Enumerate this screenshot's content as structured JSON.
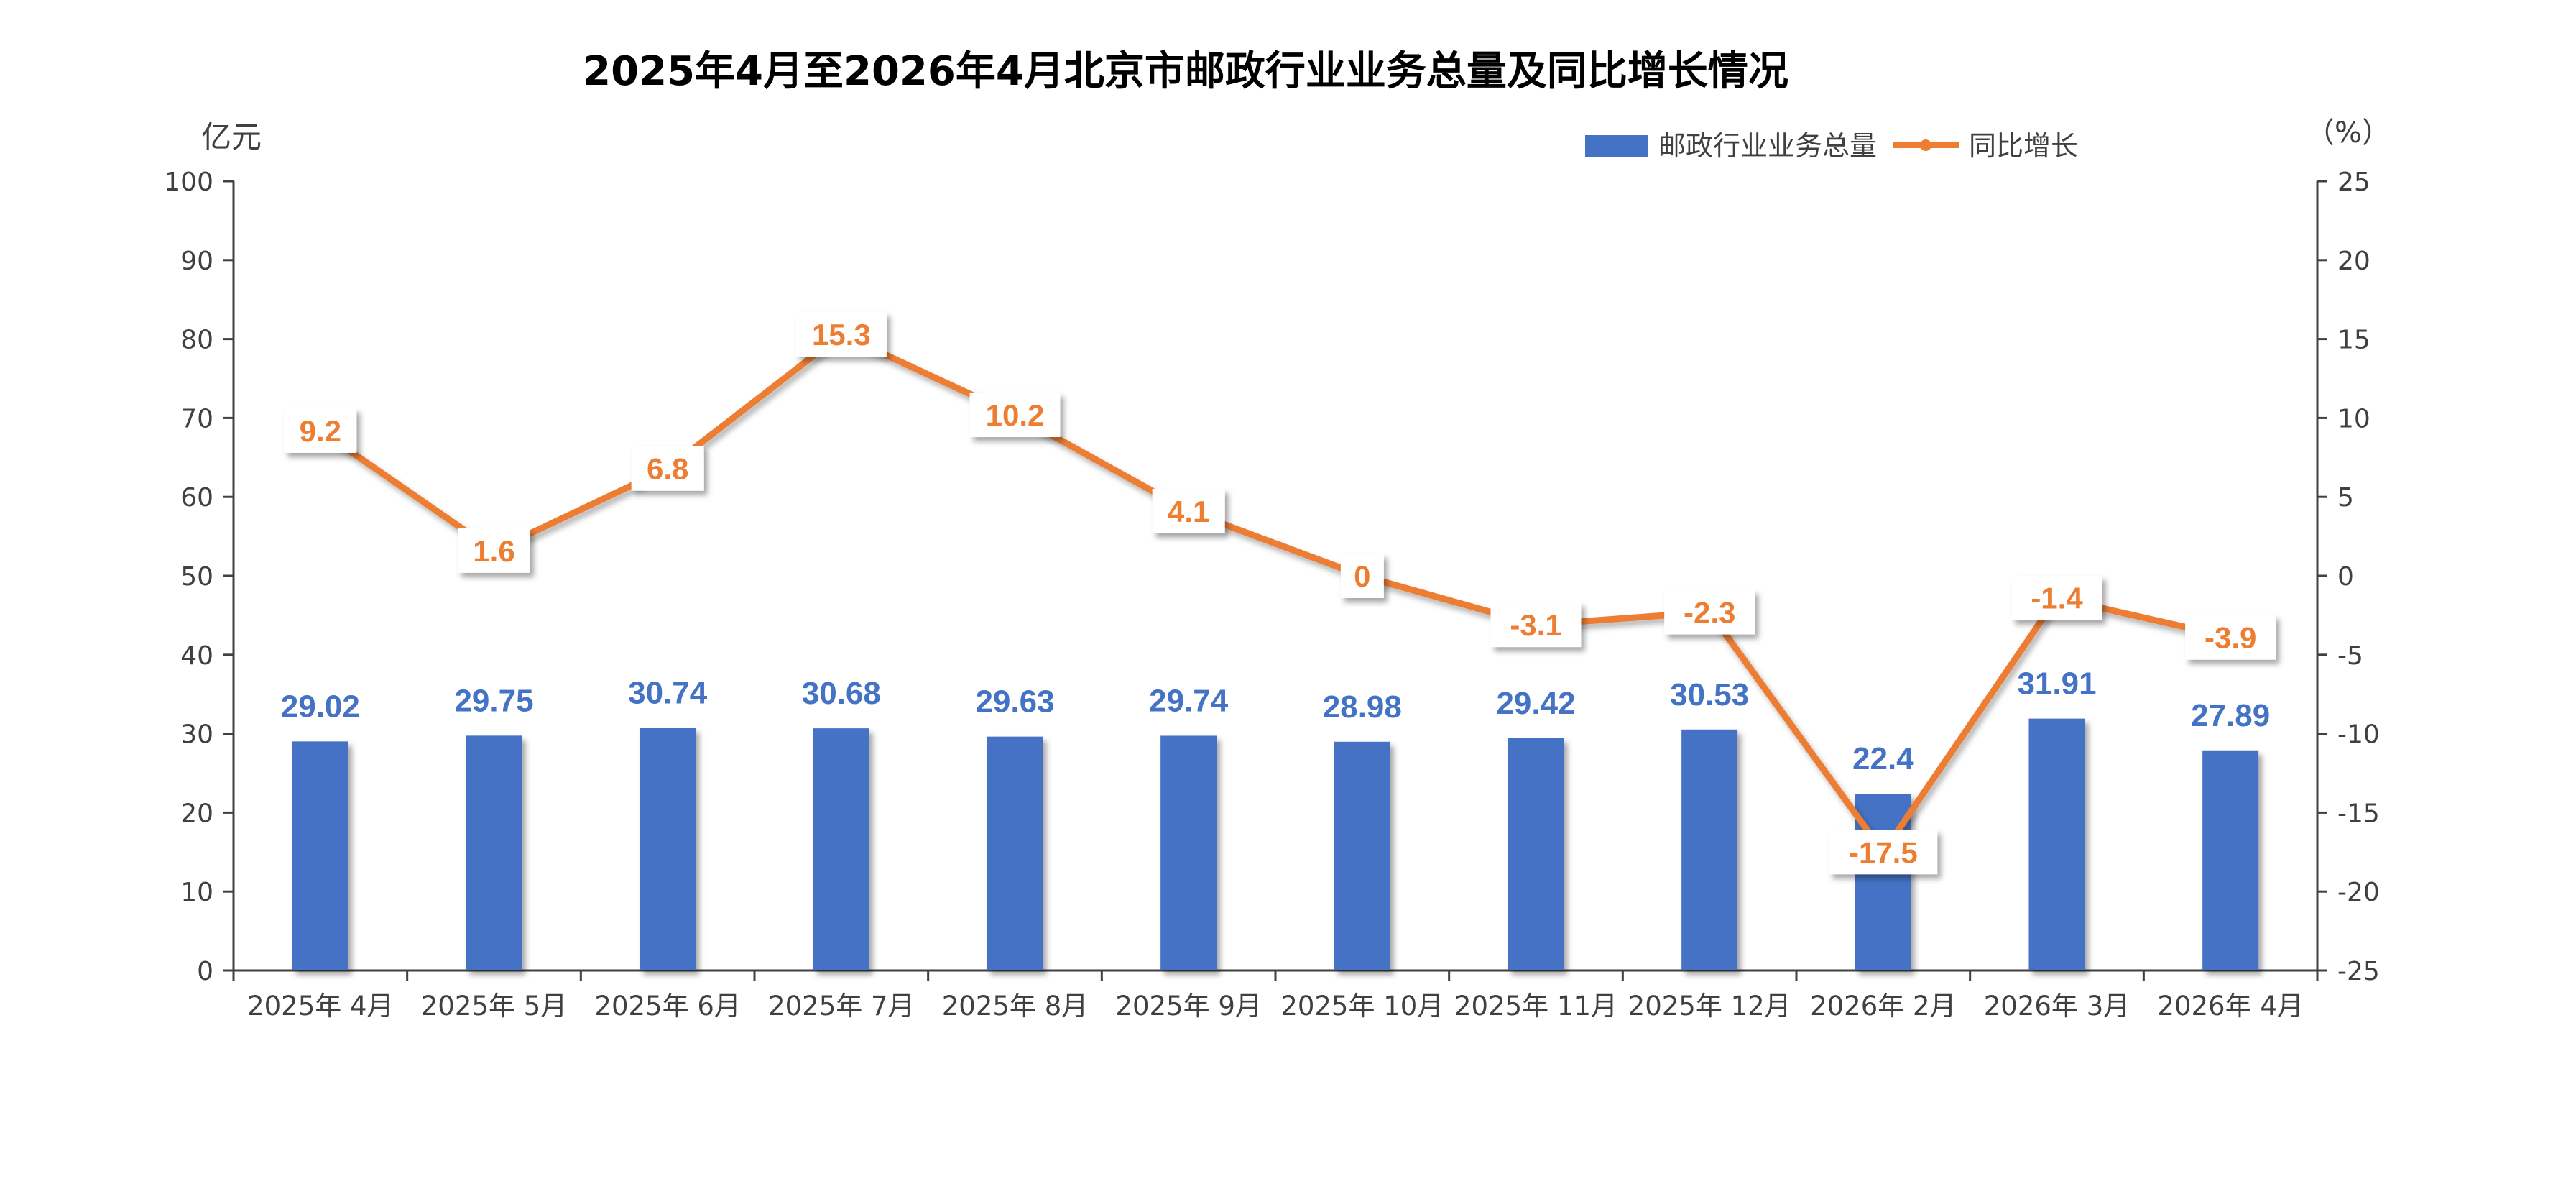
{
  "chart_data": {
    "type": "bar",
    "title": "2025年4月至2026年4月北京市邮政行业业务总量及同比增长情况",
    "y_left_unit": "亿元",
    "y_right_unit": "（%）",
    "categories": [
      "2025年 4月",
      "2025年 5月",
      "2025年 6月",
      "2025年 7月",
      "2025年 8月",
      "2025年 9月",
      "2025年 10月",
      "2025年 11月",
      "2025年 12月",
      "2026年 2月",
      "2026年 3月",
      "2026年 4月"
    ],
    "series": [
      {
        "name": "邮政行业业务总量",
        "type": "bar",
        "axis": "left",
        "color": "#4472C4",
        "values": [
          29.02,
          29.75,
          30.74,
          30.68,
          29.63,
          29.74,
          28.98,
          29.42,
          30.53,
          22.4,
          31.91,
          27.89
        ],
        "labels": [
          "29.02",
          "29.75",
          "30.74",
          "30.68",
          "29.63",
          "29.74",
          "28.98",
          "29.42",
          "30.53",
          "22.4",
          "31.91",
          "27.89"
        ]
      },
      {
        "name": "同比增长",
        "type": "line",
        "axis": "right",
        "color": "#ED7D31",
        "values": [
          9.2,
          1.6,
          6.8,
          15.3,
          10.2,
          4.1,
          0,
          -3.1,
          -2.3,
          -17.5,
          -1.4,
          -3.9
        ],
        "labels": [
          "9.2",
          "1.6",
          "6.8",
          "15.3",
          "10.2",
          "4.1",
          "0",
          "-3.1",
          "-2.3",
          "-17.5",
          "-1.4",
          "-3.9"
        ]
      }
    ],
    "y_left": {
      "min": 0,
      "max": 100,
      "ticks": [
        "0",
        "10",
        "20",
        "30",
        "40",
        "50",
        "60",
        "70",
        "80",
        "90",
        "100"
      ]
    },
    "y_right": {
      "min": -25,
      "max": 25,
      "ticks": [
        "-25",
        "-20",
        "-15",
        "-10",
        "-5",
        "0",
        "5",
        "10",
        "15",
        "20",
        "25"
      ]
    },
    "grid": false,
    "legend_position": "top-right"
  }
}
